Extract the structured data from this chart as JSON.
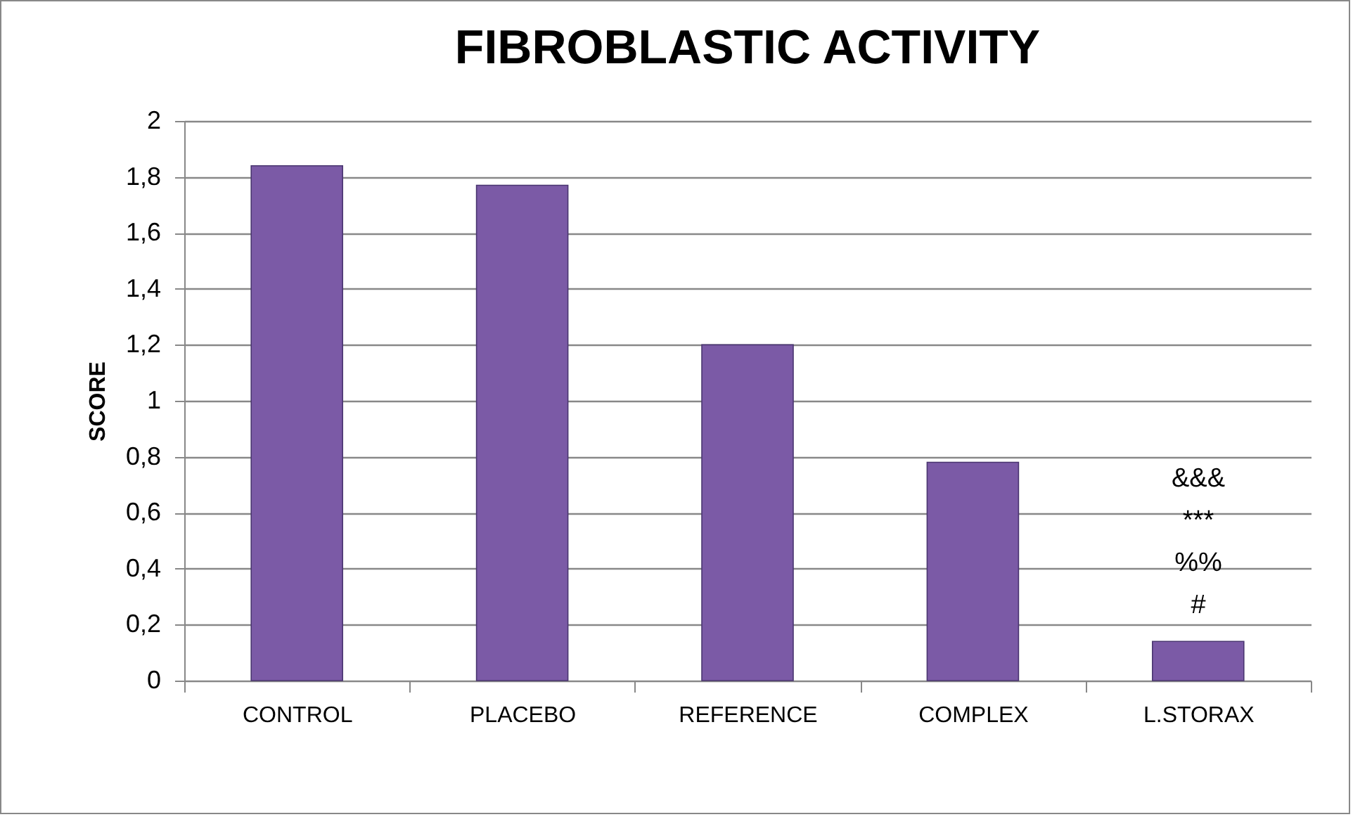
{
  "chart_data": {
    "type": "bar",
    "title": "FIBROBLASTIC ACTIVITY",
    "ylabel": "SCORE",
    "categories": [
      "CONTROL",
      "PLACEBO",
      "REFERENCE",
      "COMPLEX",
      "L.STORAX"
    ],
    "values": [
      1.84,
      1.77,
      1.2,
      0.78,
      0.14
    ],
    "color": "#7b5aa6",
    "ylim": [
      0,
      2
    ],
    "yticks": [
      {
        "value": 0,
        "label": "0"
      },
      {
        "value": 0.2,
        "label": "0,2"
      },
      {
        "value": 0.4,
        "label": "0,4"
      },
      {
        "value": 0.6,
        "label": "0,6"
      },
      {
        "value": 0.8,
        "label": "0,8"
      },
      {
        "value": 1,
        "label": "1"
      },
      {
        "value": 1.2,
        "label": "1,2"
      },
      {
        "value": 1.4,
        "label": "1,4"
      },
      {
        "value": 1.6,
        "label": "1,6"
      },
      {
        "value": 1.8,
        "label": "1,8"
      },
      {
        "value": 2,
        "label": "2"
      }
    ],
    "grid": "y",
    "annotations": [
      "&&&",
      "***",
      "%%",
      "#"
    ]
  }
}
